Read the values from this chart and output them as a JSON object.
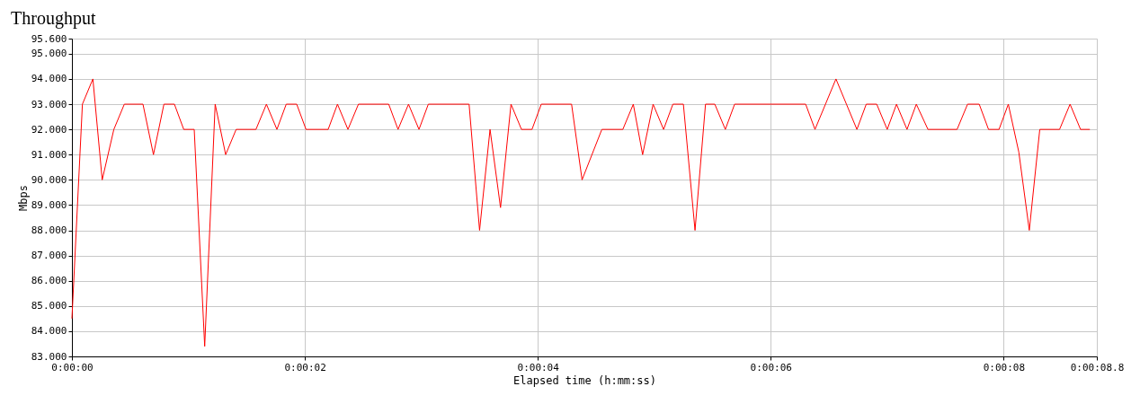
{
  "chart_data": {
    "type": "line",
    "title": "Throughput",
    "xlabel": "Elapsed time (h:mm:ss)",
    "ylabel": "Mbps",
    "xlim": [
      0,
      8.8
    ],
    "ylim": [
      83,
      95.6
    ],
    "xticks": [
      {
        "value": 0,
        "label": "0:00:00"
      },
      {
        "value": 2,
        "label": "0:00:02"
      },
      {
        "value": 4,
        "label": "0:00:04"
      },
      {
        "value": 6,
        "label": "0:00:06"
      },
      {
        "value": 8,
        "label": "0:00:08"
      },
      {
        "value": 8.8,
        "label": "0:00:08.8"
      }
    ],
    "yticks": [
      {
        "value": 83,
        "label": "83.000"
      },
      {
        "value": 84,
        "label": "84.000"
      },
      {
        "value": 85,
        "label": "85.000"
      },
      {
        "value": 86,
        "label": "86.000"
      },
      {
        "value": 87,
        "label": "87.000"
      },
      {
        "value": 88,
        "label": "88.000"
      },
      {
        "value": 89,
        "label": "89.000"
      },
      {
        "value": 90,
        "label": "90.000"
      },
      {
        "value": 91,
        "label": "91.000"
      },
      {
        "value": 92,
        "label": "92.000"
      },
      {
        "value": 93,
        "label": "93.000"
      },
      {
        "value": 94,
        "label": "94.000"
      },
      {
        "value": 95,
        "label": "95.000"
      },
      {
        "value": 95.6,
        "label": "95.600"
      }
    ],
    "grid": true,
    "marker": "none",
    "line_style": "solid",
    "x": [
      0,
      0.09,
      0.18,
      0.26,
      0.36,
      0.45,
      0.61,
      0.7,
      0.79,
      0.88,
      0.96,
      1.05,
      1.14,
      1.23,
      1.32,
      1.41,
      1.58,
      1.67,
      1.76,
      1.84,
      1.93,
      2.01,
      2.2,
      2.28,
      2.37,
      2.46,
      2.72,
      2.8,
      2.89,
      2.98,
      3.06,
      3.41,
      3.5,
      3.59,
      3.68,
      3.77,
      3.86,
      3.95,
      4.03,
      4.29,
      4.38,
      4.55,
      4.73,
      4.82,
      4.9,
      4.99,
      5.08,
      5.16,
      5.25,
      5.35,
      5.44,
      5.52,
      5.61,
      5.69,
      6.3,
      6.38,
      6.56,
      6.65,
      6.74,
      6.82,
      6.91,
      7.0,
      7.08,
      7.17,
      7.25,
      7.35,
      7.6,
      7.69,
      7.79,
      7.87,
      7.96,
      8.04,
      8.13,
      8.22,
      8.31,
      8.48,
      8.57,
      8.66,
      8.74
    ],
    "series": [
      {
        "color": "#ff0000",
        "values": [
          84.5,
          93,
          94,
          90,
          92,
          93,
          93,
          91,
          93,
          93,
          92,
          92,
          83.4,
          93,
          91,
          92,
          92,
          93,
          92,
          93,
          93,
          92,
          92,
          93,
          92,
          93,
          93,
          92,
          93,
          92,
          93,
          93,
          88,
          92,
          88.9,
          93,
          92,
          92,
          93,
          93,
          90,
          92,
          92,
          93,
          91,
          93,
          92,
          93,
          93,
          88,
          93,
          93,
          92,
          93,
          93,
          92,
          94,
          93,
          92,
          93,
          93,
          92,
          93,
          92,
          93,
          92,
          92,
          93,
          93,
          92,
          92,
          93,
          91.1,
          88,
          92,
          92,
          93,
          92,
          92
        ]
      }
    ]
  }
}
